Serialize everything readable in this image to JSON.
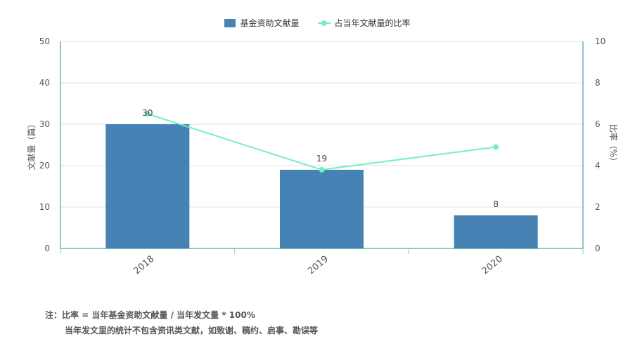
{
  "legend": {
    "bar_label": "基金资助文献量",
    "line_label": "占当年文献量的比率"
  },
  "notes": {
    "line1": "注：比率 = 当年基金资助文献量 / 当年发文量 * 100%",
    "line2": "当年发文里的统计不包含资讯类文献，如致谢、稿约、启事、勘误等"
  },
  "colors": {
    "bar": "#4682b4",
    "line": "#72f0c0",
    "axis": "#1f8f9f",
    "grid": "#e2e2e2"
  },
  "chart_data": {
    "type": "bar",
    "categories": [
      "2018",
      "2019",
      "2020"
    ],
    "series": [
      {
        "name": "基金资助文献量",
        "type": "bar",
        "axis": "left",
        "values": [
          30,
          19,
          8
        ],
        "data_labels": [
          "30",
          "19",
          "8"
        ]
      },
      {
        "name": "占当年文献量的比率",
        "type": "line",
        "axis": "right",
        "values": [
          6.5,
          3.8,
          4.9
        ]
      }
    ],
    "y_left": {
      "label": "文献量（篇）",
      "ylim": [
        0,
        50
      ],
      "ticks": [
        0,
        10,
        20,
        30,
        40,
        50
      ]
    },
    "y_right": {
      "label": "比率（%）",
      "ylim": [
        0,
        10
      ],
      "ticks": [
        0,
        2,
        4,
        6,
        8,
        10
      ]
    },
    "grid": true,
    "legend_position": "top-center"
  }
}
